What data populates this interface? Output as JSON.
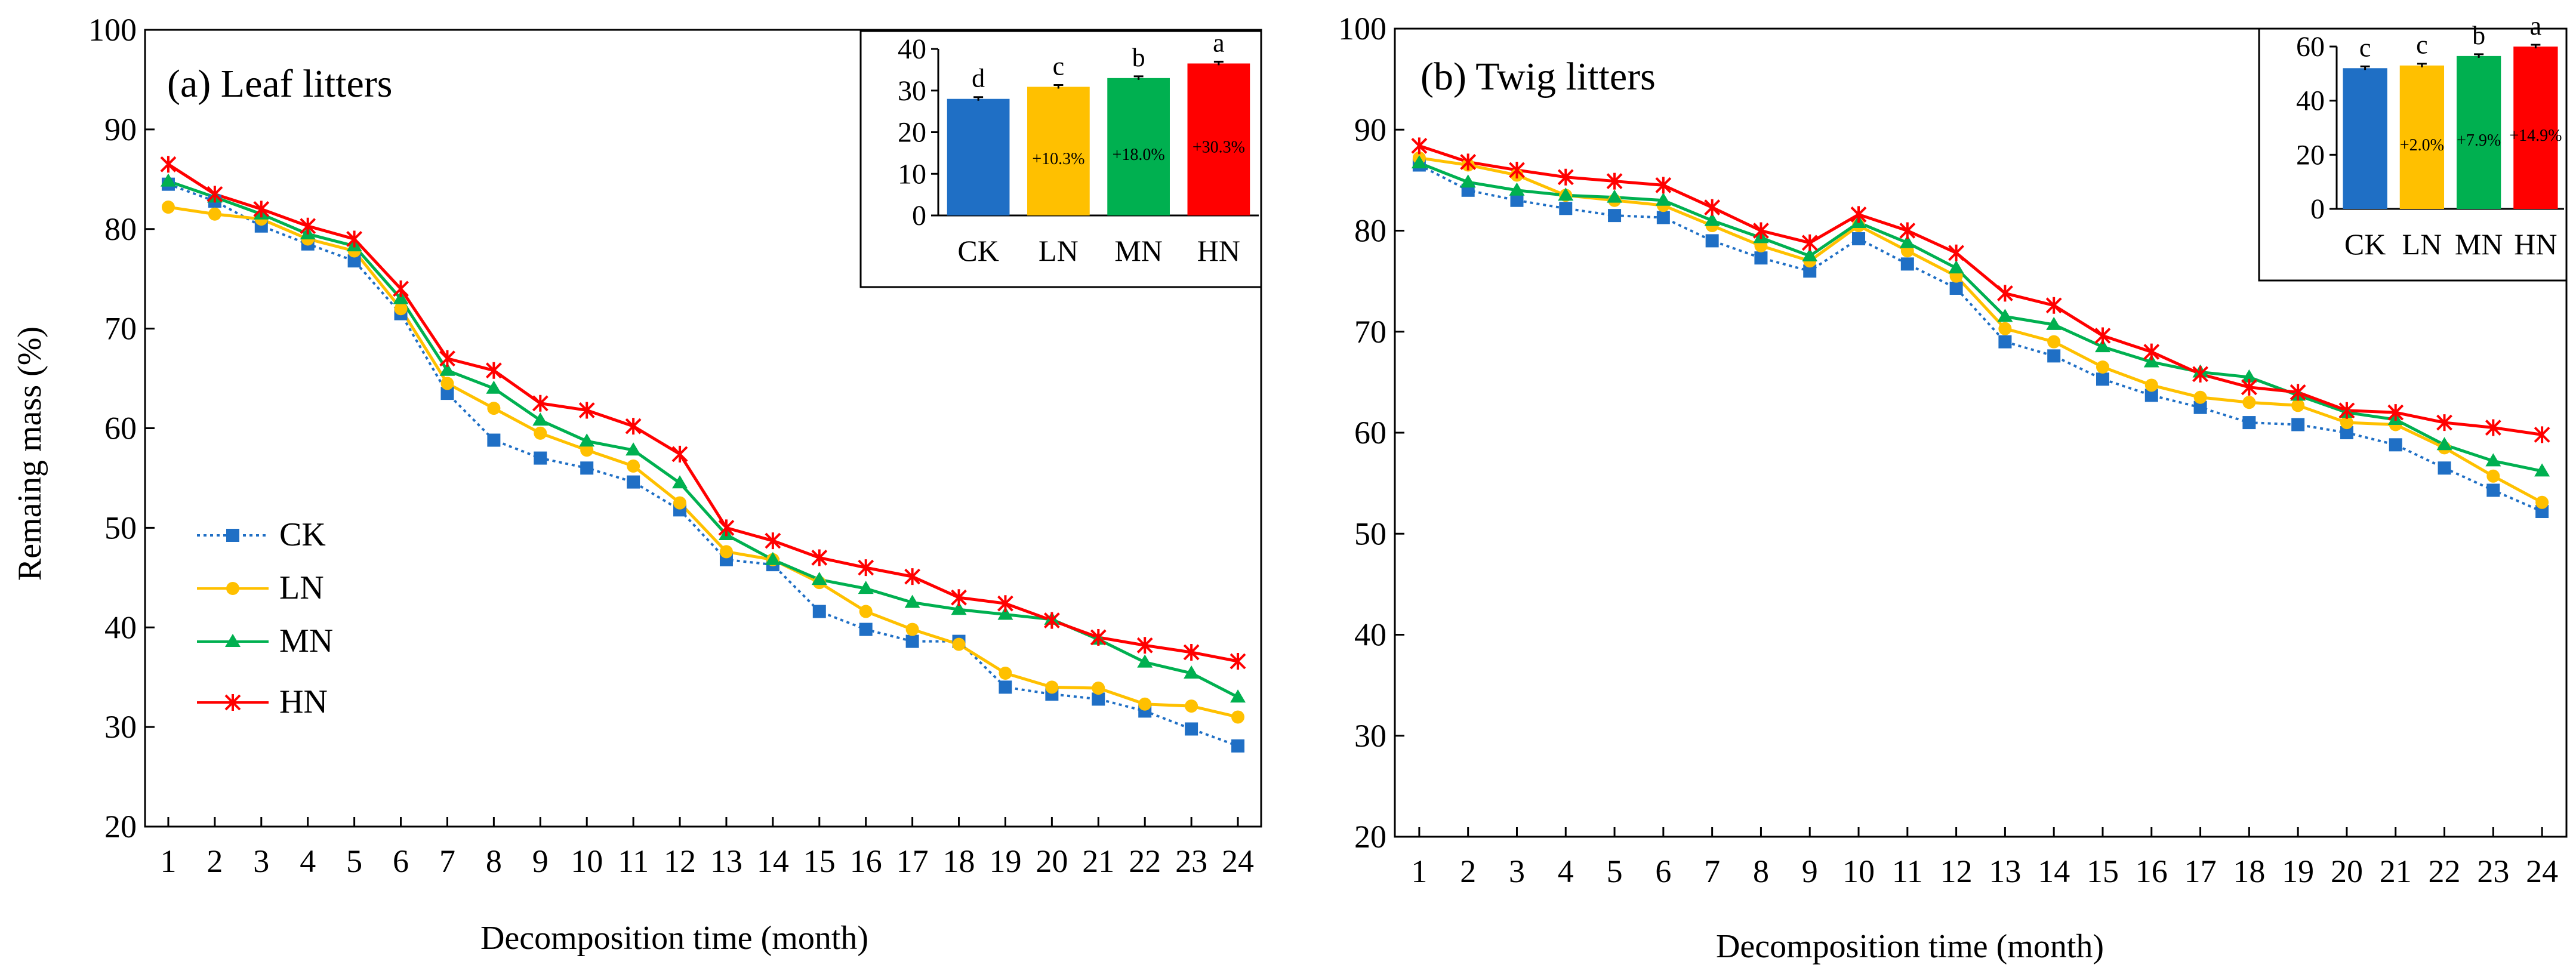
{
  "figure": {
    "shared": {
      "ylabel": "Remaing mass (%)",
      "xlabel": "Decomposition time (month)",
      "x_ticks": [
        "1",
        "2",
        "3",
        "4",
        "5",
        "6",
        "7",
        "8",
        "9",
        "10",
        "11",
        "12",
        "13",
        "14",
        "15",
        "16",
        "17",
        "18",
        "19",
        "20",
        "21",
        "22",
        "23",
        "24"
      ],
      "y_ticks": [
        "20",
        "30",
        "40",
        "50",
        "60",
        "70",
        "80",
        "90",
        "100"
      ]
    },
    "legend": {
      "position": "left-middle of panel (a)",
      "entries": [
        "CK",
        "LN",
        "MN",
        "HN"
      ]
    }
  },
  "colors": {
    "CK": "#1f6fc5",
    "LN": "#ffc000",
    "MN": "#00b050",
    "HN": "#ff0000"
  },
  "chart_data": [
    {
      "type": "line",
      "title": "(a) Leaf litters",
      "xlabel": "Decomposition time (month)",
      "ylabel": "Remaing mass (%)",
      "xlim": [
        1,
        24
      ],
      "ylim": [
        20,
        100
      ],
      "x": [
        1,
        2,
        3,
        4,
        5,
        6,
        7,
        8,
        9,
        10,
        11,
        12,
        13,
        14,
        15,
        16,
        17,
        18,
        19,
        20,
        21,
        22,
        23,
        24
      ],
      "series": [
        {
          "name": "CK",
          "marker": "square",
          "line": "dotted",
          "values": [
            84.5,
            82.8,
            80.3,
            78.5,
            76.8,
            71.5,
            63.5,
            58.8,
            57.0,
            56.0,
            54.6,
            51.8,
            46.8,
            46.3,
            41.6,
            39.8,
            38.6,
            38.6,
            34.0,
            33.3,
            32.8,
            31.6,
            29.8,
            28.1
          ]
        },
        {
          "name": "LN",
          "marker": "circle",
          "line": "solid",
          "values": [
            82.2,
            81.5,
            81.0,
            79.0,
            77.8,
            72.0,
            64.5,
            62.0,
            59.5,
            57.8,
            56.2,
            52.5,
            47.6,
            46.8,
            44.5,
            41.6,
            39.8,
            38.3,
            35.4,
            34.0,
            33.9,
            32.3,
            32.1,
            31.0
          ]
        },
        {
          "name": "MN",
          "marker": "triangle",
          "line": "solid",
          "values": [
            84.8,
            83.2,
            81.5,
            79.5,
            78.3,
            73.0,
            65.8,
            64.0,
            60.8,
            58.7,
            57.8,
            54.5,
            49.3,
            46.8,
            44.8,
            43.9,
            42.5,
            41.8,
            41.3,
            40.8,
            38.8,
            36.5,
            35.4,
            33.0
          ]
        },
        {
          "name": "HN",
          "marker": "star",
          "line": "solid",
          "values": [
            86.5,
            83.5,
            82.0,
            80.3,
            79.0,
            74.0,
            67.0,
            65.8,
            62.5,
            61.8,
            60.2,
            57.4,
            50.0,
            48.7,
            47.0,
            46.0,
            45.1,
            43.0,
            42.4,
            40.7,
            39.0,
            38.2,
            37.5,
            36.6
          ]
        }
      ],
      "inset": {
        "type": "bar",
        "categories": [
          "CK",
          "LN",
          "MN",
          "HN"
        ],
        "values": [
          28.0,
          30.9,
          33.0,
          36.5
        ],
        "letters": [
          "d",
          "c",
          "b",
          "a"
        ],
        "percent_labels": [
          "",
          "+10.3%",
          "+18.0%",
          "+30.3%"
        ],
        "ylim": [
          0,
          40
        ],
        "y_ticks": [
          "0",
          "10",
          "20",
          "30",
          "40"
        ]
      }
    },
    {
      "type": "line",
      "title": "(b) Twig litters",
      "xlabel": "Decomposition time (month)",
      "ylabel": "",
      "xlim": [
        1,
        24
      ],
      "ylim": [
        20,
        100
      ],
      "x": [
        1,
        2,
        3,
        4,
        5,
        6,
        7,
        8,
        9,
        10,
        11,
        12,
        13,
        14,
        15,
        16,
        17,
        18,
        19,
        20,
        21,
        22,
        23,
        24
      ],
      "series": [
        {
          "name": "CK",
          "marker": "square",
          "line": "dotted",
          "values": [
            86.5,
            84.0,
            83.0,
            82.2,
            81.5,
            81.3,
            79.0,
            77.3,
            76.0,
            79.2,
            76.7,
            74.3,
            69.0,
            67.6,
            65.3,
            63.7,
            62.5,
            61.0,
            60.8,
            60.0,
            58.8,
            56.5,
            54.3,
            52.2
          ]
        },
        {
          "name": "LN",
          "marker": "circle",
          "line": "solid",
          "values": [
            87.2,
            86.5,
            85.5,
            83.5,
            83.0,
            82.5,
            80.5,
            78.5,
            77.0,
            80.5,
            78.0,
            75.5,
            70.3,
            69.0,
            66.5,
            64.7,
            63.5,
            63.0,
            62.7,
            61.0,
            60.8,
            58.5,
            55.7,
            53.1
          ]
        },
        {
          "name": "MN",
          "marker": "triangle",
          "line": "solid",
          "values": [
            86.7,
            84.8,
            84.0,
            83.5,
            83.3,
            83.0,
            81.0,
            79.3,
            77.5,
            80.8,
            78.8,
            76.3,
            71.5,
            70.7,
            68.5,
            67.0,
            66.0,
            65.5,
            63.7,
            62.0,
            61.3,
            58.8,
            57.2,
            56.2
          ]
        },
        {
          "name": "HN",
          "marker": "star",
          "line": "solid",
          "values": [
            88.4,
            86.8,
            86.0,
            85.3,
            84.9,
            84.5,
            82.3,
            80.0,
            78.8,
            81.6,
            80.0,
            77.8,
            73.8,
            72.6,
            69.6,
            68.0,
            65.8,
            64.5,
            64.0,
            62.2,
            62.0,
            61.0,
            60.5,
            59.8
          ]
        }
      ],
      "inset": {
        "type": "bar",
        "categories": [
          "CK",
          "LN",
          "MN",
          "HN"
        ],
        "values": [
          52.0,
          53.0,
          56.5,
          60.0
        ],
        "letters": [
          "c",
          "c",
          "b",
          "a"
        ],
        "percent_labels": [
          "",
          "+2.0%",
          "+7.9%",
          "+14.9%"
        ],
        "ylim": [
          0,
          60
        ],
        "y_ticks": [
          "0",
          "20",
          "40",
          "60"
        ]
      }
    }
  ]
}
